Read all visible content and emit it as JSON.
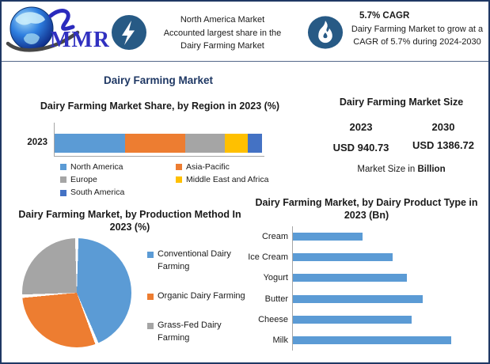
{
  "colors": {
    "navy_heading": "#1f3864",
    "icon_circle": "#275a85",
    "value_blue": "#1b75bb",
    "series_blue": "#5b9bd5",
    "series_orange": "#ed7d31",
    "series_gray": "#a5a5a5",
    "series_yellow": "#ffc000",
    "series_darkblue": "#4472c4",
    "outer_border": "#1f3864"
  },
  "banner": {
    "logo_text": "MMR",
    "highlight": {
      "icon": "lightning-icon",
      "lines": [
        "North America Market",
        "Accounted largest share in the",
        "Dairy Farming Market"
      ]
    },
    "cagr": {
      "icon": "flame-icon",
      "heading": "5.7% CAGR",
      "body": "Dairy Farming Market to grow at a CAGR of 5.7% during 2024-2030"
    }
  },
  "page_title": "Dairy Farming Market",
  "market_size": {
    "title": "Dairy Farming Market Size",
    "columns": [
      {
        "year": "2023",
        "value": "USD 940.73"
      },
      {
        "year": "2030",
        "value": "USD 1386.72"
      }
    ],
    "note_prefix": "Market Size in ",
    "note_bold": "Billion"
  },
  "chart_data": [
    {
      "type": "bar",
      "subtype": "stacked-horizontal",
      "title": "Dairy Farming Market Share, by Region in 2023 (%)",
      "categories": [
        "2023"
      ],
      "series": [
        {
          "name": "North America",
          "values": [
            34
          ],
          "color": "#5b9bd5"
        },
        {
          "name": "Asia-Pacific",
          "values": [
            29
          ],
          "color": "#ed7d31"
        },
        {
          "name": "Europe",
          "values": [
            19
          ],
          "color": "#a5a5a5"
        },
        {
          "name": "Middle East and Africa",
          "values": [
            11
          ],
          "color": "#ffc000"
        },
        {
          "name": "South America",
          "values": [
            7
          ],
          "color": "#4472c4"
        }
      ],
      "xlim": [
        0,
        100
      ],
      "grid": false,
      "legend_position": "bottom",
      "note": "segment values estimated from bar widths; no data labels shown"
    },
    {
      "type": "pie",
      "title": "Dairy Farming Market, by Production Method In 2023 (%)",
      "labels": [
        "Conventional Dairy Farming",
        "Organic Dairy Farming",
        "Grass-Fed Dairy Farming"
      ],
      "values": [
        44,
        30,
        26
      ],
      "colors": [
        "#5b9bd5",
        "#ed7d31",
        "#a5a5a5"
      ],
      "start_angle_deg": 0,
      "direction": "clockwise",
      "legend_position": "right",
      "note": "slice values estimated from angles; no data labels shown"
    },
    {
      "type": "bar",
      "subtype": "horizontal",
      "title": "Dairy Farming Market, by Dairy Product Type in 2023 (Bn)",
      "categories": [
        "Cream",
        "Ice Cream",
        "Yogurt",
        "Butter",
        "Cheese",
        "Milk"
      ],
      "values": [
        44,
        63,
        72,
        82,
        75,
        100
      ],
      "values_unit": "relative length, % of longest bar (axis unlabeled)",
      "color": "#5b9bd5",
      "grid": false
    }
  ]
}
